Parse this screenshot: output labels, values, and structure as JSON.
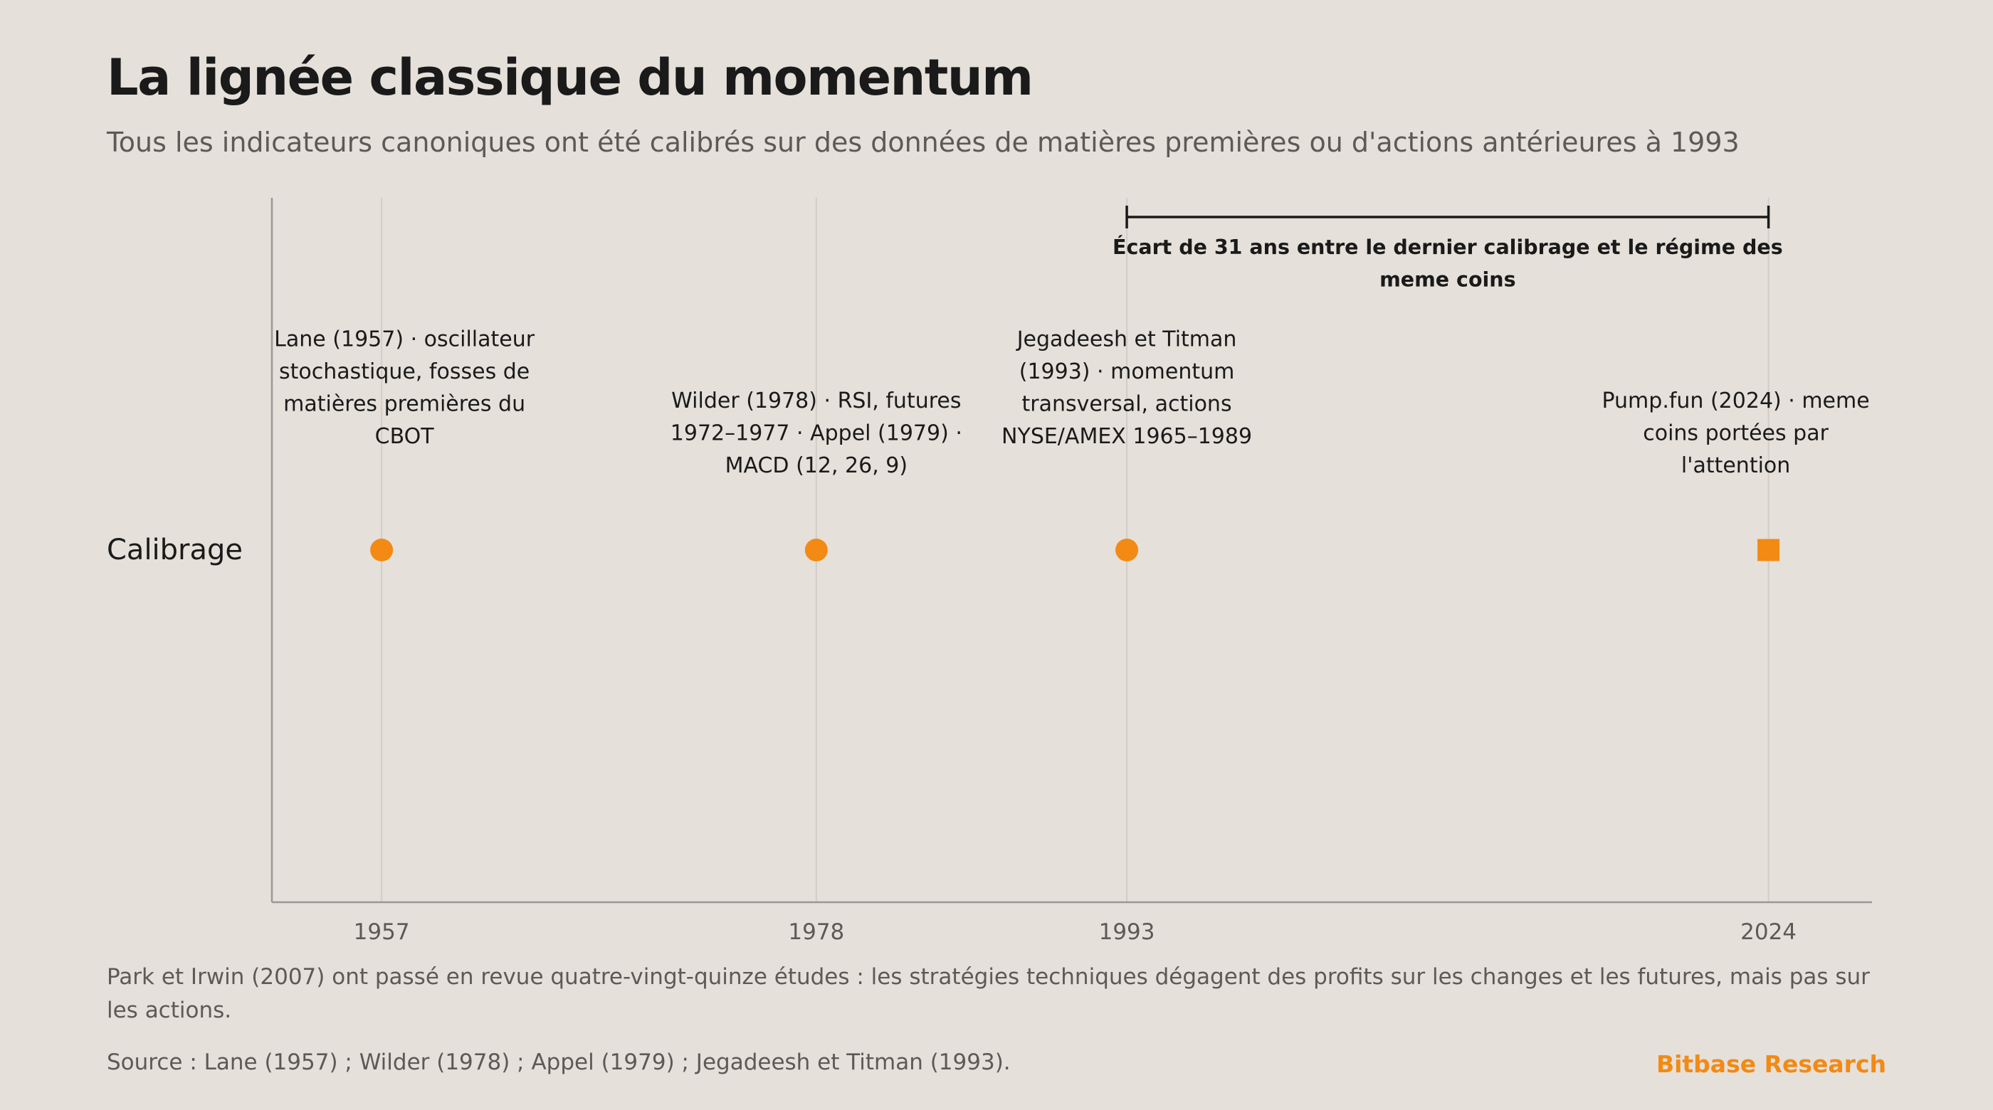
{
  "title": "La lignée classique du momentum",
  "subtitle": "Tous les indicateurs canoniques ont été calibrés sur des données de matières premières ou d'actions antérieures à 1993",
  "chart_data": {
    "type": "scatter",
    "row_label": "Calibrage",
    "x_ticks": [
      "1957",
      "1978",
      "1993",
      "2024"
    ],
    "xlim": [
      1951.7,
      2029
    ],
    "grid": "vertical",
    "events": [
      {
        "x": 1957,
        "marker": "circle",
        "label_lines": [
          "Lane (1957) · oscillateur",
          "stochastique, fosses de",
          "matières premières du",
          "CBOT"
        ]
      },
      {
        "x": 1978,
        "marker": "circle",
        "label_lines": [
          "Wilder (1978) · RSI, futures",
          "1972–1977 · Appel (1979) ·",
          "MACD (12, 26, 9)"
        ]
      },
      {
        "x": 1993,
        "marker": "circle",
        "label_lines": [
          "Jegadeesh et Titman",
          "(1993) · momentum",
          "transversal, actions",
          "NYSE/AMEX 1965–1989"
        ]
      },
      {
        "x": 2024,
        "marker": "square",
        "label_lines": [
          "Pump.fun (2024) · meme",
          "coins portées par",
          "l'attention"
        ]
      }
    ],
    "gap_annotation": {
      "from": 1993,
      "to": 2024,
      "label_lines": [
        "Écart de 31 ans entre le dernier calibrage et le régime des",
        "meme coins"
      ]
    }
  },
  "note": "Park et Irwin (2007) ont passé en revue quatre-vingt-quinze études : les stratégies techniques dégagent des profits sur les changes et les futures, mais pas sur les actions.",
  "source": "Source : Lane (1957) ; Wilder (1978) ; Appel (1979) ; Jegadeesh et Titman (1993).",
  "brand": "Bitbase Research",
  "colors": {
    "background": "#e5e0da",
    "accent": "#f28a14",
    "text": "#1a1a1a",
    "muted": "#5c5a57",
    "grid": "#d2cdc7",
    "axis": "#9b9894"
  }
}
